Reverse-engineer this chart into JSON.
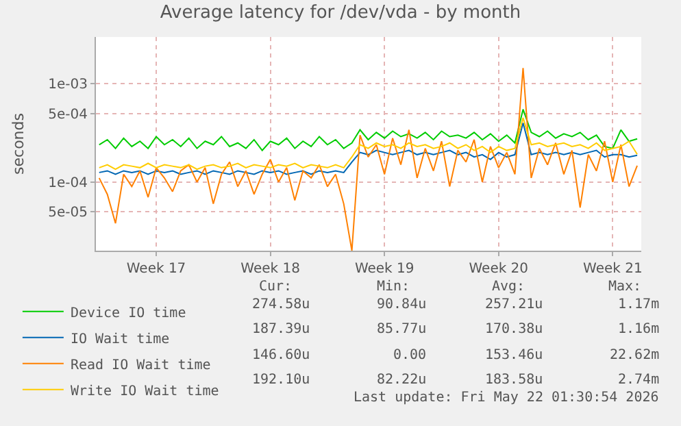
{
  "chart_data": {
    "type": "line",
    "title": "Average latency for /dev/vda - by month",
    "ylabel": "seconds",
    "log": "y",
    "grid": true,
    "legend": "bottom left",
    "marker": "none",
    "line_style": "solid",
    "categories": [
      null,
      null,
      null,
      null,
      null,
      null,
      null,
      "Week 17",
      null,
      null,
      null,
      null,
      null,
      null,
      null,
      null,
      null,
      null,
      null,
      null,
      null,
      "Week 18",
      null,
      null,
      null,
      null,
      null,
      null,
      null,
      null,
      null,
      null,
      null,
      null,
      null,
      "Week 19",
      null,
      null,
      null,
      null,
      null,
      null,
      null,
      null,
      null,
      null,
      null,
      null,
      null,
      "Week 20",
      null,
      null,
      null,
      null,
      null,
      null,
      null,
      null,
      null,
      null,
      null,
      null,
      null,
      "Week 21",
      null,
      null,
      null
    ],
    "ylim": [
      2e-05,
      0.003
    ],
    "yticks": [
      {
        "value": 5e-05,
        "label": "5e-05"
      },
      {
        "value": 0.0001,
        "label": "1e-04"
      },
      {
        "value": 0.0005,
        "label": "5e-04"
      },
      {
        "value": 0.001,
        "label": "1e-03"
      }
    ],
    "series": [
      {
        "name": "Device IO time",
        "color": "#00cc00",
        "values": [
          0.00024,
          0.00027,
          0.00022,
          0.00028,
          0.00023,
          0.00026,
          0.00022,
          0.00029,
          0.00024,
          0.00027,
          0.00023,
          0.00028,
          0.00022,
          0.00026,
          0.00024,
          0.00029,
          0.00023,
          0.00025,
          0.00022,
          0.00027,
          0.00021,
          0.00026,
          0.00024,
          0.00028,
          0.00022,
          0.00026,
          0.00023,
          0.00029,
          0.00024,
          0.00027,
          0.00022,
          0.00025,
          0.00034,
          0.00027,
          0.00032,
          0.00028,
          0.00033,
          0.00029,
          0.00031,
          0.00028,
          0.00032,
          0.00027,
          0.00033,
          0.00029,
          0.0003,
          0.00028,
          0.00032,
          0.00027,
          0.00031,
          0.00026,
          0.0003,
          0.00025,
          0.00055,
          0.00032,
          0.00029,
          0.00033,
          0.00028,
          0.00031,
          0.00029,
          0.00032,
          0.00027,
          0.0003,
          0.00023,
          0.00022,
          0.00034,
          0.00026,
          0.000275
        ]
      },
      {
        "name": "IO Wait time",
        "color": "#0066b3",
        "values": [
          0.000125,
          0.00013,
          0.00012,
          0.00013,
          0.000125,
          0.00013,
          0.00012,
          0.00013,
          0.000125,
          0.00013,
          0.00012,
          0.000125,
          0.00013,
          0.00012,
          0.00013,
          0.000125,
          0.00012,
          0.00013,
          0.000125,
          0.00012,
          0.00013,
          0.000125,
          0.00013,
          0.00012,
          0.000125,
          0.00013,
          0.00012,
          0.00013,
          0.000125,
          0.00013,
          0.000125,
          0.00016,
          0.0002,
          0.00019,
          0.00021,
          0.0002,
          0.00019,
          0.0002,
          0.00021,
          0.00019,
          0.0002,
          0.00019,
          0.0002,
          0.00021,
          0.00019,
          0.0002,
          0.00018,
          0.00019,
          0.00017,
          0.0002,
          0.00018,
          0.00019,
          0.0004,
          0.00019,
          0.0002,
          0.00019,
          0.0002,
          0.00019,
          0.0002,
          0.00019,
          0.0002,
          0.00021,
          0.00018,
          0.00019,
          0.00019,
          0.00018,
          0.000187
        ]
      },
      {
        "name": "Read IO Wait time",
        "color": "#ff8000",
        "values": [
          0.00011,
          7.5e-05,
          3.8e-05,
          0.00012,
          9e-05,
          0.00013,
          7e-05,
          0.00014,
          0.00011,
          8e-05,
          0.00013,
          0.00015,
          0.0001,
          0.00014,
          6e-05,
          0.00012,
          0.00016,
          9e-05,
          0.00013,
          7.5e-05,
          0.00012,
          0.00017,
          0.0001,
          0.00014,
          6.5e-05,
          0.00013,
          0.00011,
          0.00015,
          9e-05,
          0.00012,
          6e-05,
          2e-05,
          0.0003,
          0.00018,
          0.00024,
          0.00012,
          0.00028,
          0.00015,
          0.00034,
          0.00011,
          0.00022,
          0.00013,
          0.00026,
          9e-05,
          0.00021,
          0.00016,
          0.00027,
          0.0001,
          0.00023,
          0.00014,
          0.0002,
          0.00012,
          0.00145,
          0.00011,
          0.00022,
          0.00015,
          0.00025,
          0.00012,
          0.00021,
          5.5e-05,
          0.00019,
          0.00013,
          0.00026,
          0.0001,
          0.00024,
          9e-05,
          0.000147
        ]
      },
      {
        "name": "Write IO Wait time",
        "color": "#ffcc00",
        "values": [
          0.00014,
          0.00015,
          0.000135,
          0.00015,
          0.000145,
          0.00014,
          0.000155,
          0.00014,
          0.00015,
          0.000145,
          0.00014,
          0.00015,
          0.000135,
          0.000145,
          0.00015,
          0.00014,
          0.000145,
          0.000155,
          0.00014,
          0.00015,
          0.000145,
          0.00014,
          0.00015,
          0.000145,
          0.000155,
          0.00014,
          0.00015,
          0.000145,
          0.00014,
          0.00015,
          0.00014,
          0.00018,
          0.00024,
          0.00022,
          0.00025,
          0.00023,
          0.00024,
          0.00022,
          0.00025,
          0.00023,
          0.00024,
          0.00022,
          0.00023,
          0.00025,
          0.00022,
          0.00024,
          0.00021,
          0.00023,
          0.0002,
          0.00023,
          0.00021,
          0.00022,
          0.00045,
          0.00024,
          0.00025,
          0.00023,
          0.00024,
          0.00025,
          0.00023,
          0.00024,
          0.00022,
          0.00025,
          0.00021,
          0.00022,
          0.00023,
          0.00026,
          0.000192
        ]
      }
    ],
    "annotations": [
      "Cur:",
      "Min:",
      "Avg:",
      "Max:",
      "274.58u",
      "90.84u",
      "257.21u",
      "1.17m",
      "187.39u",
      "85.77u",
      "170.38u",
      "1.16m",
      "146.60u",
      "0.00",
      "153.46u",
      "22.62m",
      "192.10u",
      "82.22u",
      "183.58u",
      "2.74m",
      "Last update: Fri May 22 01:30:54 2026"
    ]
  }
}
